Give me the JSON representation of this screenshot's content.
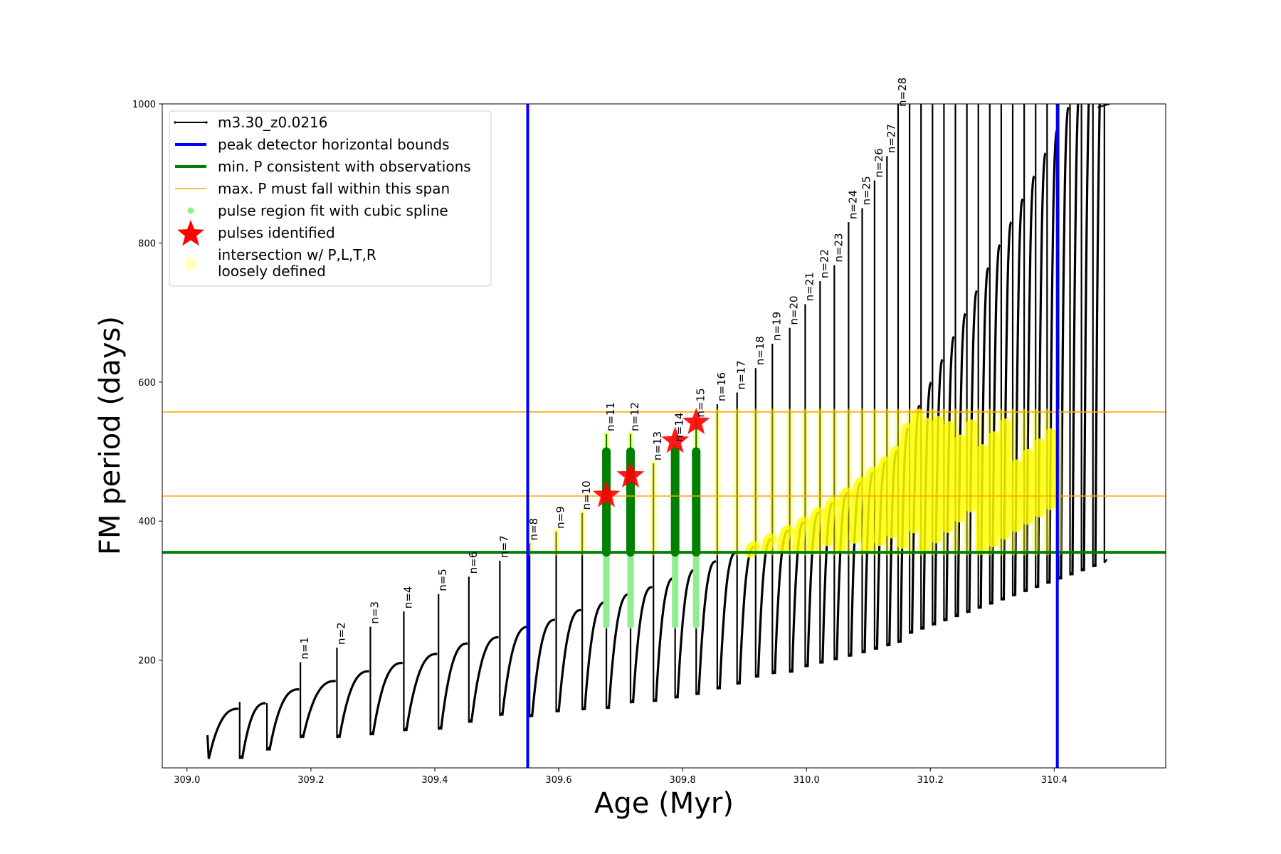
{
  "chart_data": {
    "type": "line",
    "title": "",
    "xlabel": "Age (Myr)",
    "ylabel": "FM period (days)",
    "xlim": [
      308.96,
      310.58
    ],
    "ylim": [
      45,
      1000
    ],
    "xticks": [
      "309.0",
      "309.2",
      "309.4",
      "309.6",
      "309.8",
      "310.0",
      "310.2",
      "310.4"
    ],
    "xtick_values": [
      309.0,
      309.2,
      309.4,
      309.6,
      309.8,
      310.0,
      310.2,
      310.4
    ],
    "yticks": [
      "200",
      "400",
      "600",
      "800",
      "1000"
    ],
    "ytick_values": [
      200,
      400,
      600,
      800,
      1000
    ],
    "grid": false,
    "legend_position": "top-left",
    "legend": [
      {
        "label": "m3.30_z0.0216",
        "kind": "line-marker",
        "color": "#000000"
      },
      {
        "label": "peak detector horizontal bounds",
        "kind": "line",
        "color": "#0000ff"
      },
      {
        "label": "min. P consistent with observations",
        "kind": "line",
        "color": "#008000"
      },
      {
        "label": "max. P must fall within this span",
        "kind": "thin-line",
        "color": "#ffa500"
      },
      {
        "label": "pulse region fit with cubic spline",
        "kind": "dot",
        "color": "#90ee90"
      },
      {
        "label": "pulses identified",
        "kind": "star",
        "color": "#ff0000"
      },
      {
        "label": "intersection w/ P,L,T,R",
        "label2": "loosely defined",
        "kind": "circle",
        "color": "#ffff99"
      }
    ],
    "vertical_lines": [
      {
        "x": 309.55,
        "color": "#0000ff"
      },
      {
        "x": 310.405,
        "color": "#0000ff"
      }
    ],
    "horizontal_lines": [
      {
        "y": 355,
        "color": "#008000",
        "width": "thick"
      },
      {
        "y": 436,
        "color": "#ffa500",
        "width": "thin"
      },
      {
        "y": 557,
        "color": "#ffa500",
        "width": "thin"
      }
    ],
    "pulses": [
      {
        "n": 1,
        "x": 309.183,
        "min": 88,
        "max": 197,
        "end": 158,
        "label": "n=1"
      },
      {
        "n": 2,
        "x": 309.242,
        "min": 88,
        "max": 218,
        "end": 170,
        "label": "n=2"
      },
      {
        "n": 3,
        "x": 309.296,
        "min": 92,
        "max": 248,
        "end": 184,
        "label": "n=3"
      },
      {
        "n": 4,
        "x": 309.35,
        "min": 98,
        "max": 270,
        "end": 196,
        "label": "n=4"
      },
      {
        "n": 5,
        "x": 309.406,
        "min": 100,
        "max": 295,
        "end": 209,
        "label": "n=5"
      },
      {
        "n": 6,
        "x": 309.455,
        "min": 110,
        "max": 320,
        "end": 224,
        "label": "n=6"
      },
      {
        "n": 7,
        "x": 309.505,
        "min": 120,
        "max": 343,
        "end": 233,
        "label": "n=7"
      },
      {
        "n": 8,
        "x": 309.553,
        "min": 118,
        "max": 368,
        "end": 248,
        "label": "n=8"
      },
      {
        "n": 9,
        "x": 309.596,
        "min": 125,
        "max": 385,
        "end": 258,
        "label": "n=9"
      },
      {
        "n": 10,
        "x": 309.638,
        "min": 128,
        "max": 412,
        "end": 272,
        "label": "n=10"
      },
      {
        "n": 11,
        "x": 309.677,
        "min": 130,
        "max": 525,
        "end": 283,
        "label": "n=11"
      },
      {
        "n": 12,
        "x": 309.716,
        "min": 138,
        "max": 525,
        "end": 295,
        "label": "n=12"
      },
      {
        "n": 13,
        "x": 309.753,
        "min": 140,
        "max": 483,
        "end": 305,
        "label": "n=13"
      },
      {
        "n": 14,
        "x": 309.788,
        "min": 145,
        "max": 510,
        "end": 318,
        "label": "n=14"
      },
      {
        "n": 15,
        "x": 309.822,
        "min": 150,
        "max": 545,
        "end": 330,
        "label": "n=15"
      },
      {
        "n": 16,
        "x": 309.856,
        "min": 158,
        "max": 568,
        "end": 342,
        "label": "n=16"
      },
      {
        "n": 17,
        "x": 309.888,
        "min": 165,
        "max": 585,
        "end": 354,
        "label": "n=17"
      },
      {
        "n": 18,
        "x": 309.918,
        "min": 175,
        "max": 620,
        "end": 363,
        "label": "n=18"
      },
      {
        "n": 19,
        "x": 309.945,
        "min": 180,
        "max": 655,
        "end": 374,
        "label": "n=19"
      },
      {
        "n": 20,
        "x": 309.973,
        "min": 182,
        "max": 678,
        "end": 386,
        "label": "n=20"
      },
      {
        "n": 21,
        "x": 309.998,
        "min": 190,
        "max": 712,
        "end": 398,
        "label": "n=21"
      },
      {
        "n": 22,
        "x": 310.022,
        "min": 195,
        "max": 745,
        "end": 412,
        "label": "n=22"
      },
      {
        "n": 23,
        "x": 310.045,
        "min": 200,
        "max": 768,
        "end": 426,
        "label": "n=23"
      },
      {
        "n": 24,
        "x": 310.068,
        "min": 205,
        "max": 830,
        "end": 440,
        "label": "n=24"
      },
      {
        "n": 25,
        "x": 310.09,
        "min": 210,
        "max": 850,
        "end": 455,
        "label": "n=25"
      },
      {
        "n": 26,
        "x": 310.11,
        "min": 215,
        "max": 890,
        "end": 470,
        "label": "n=26"
      },
      {
        "n": 27,
        "x": 310.13,
        "min": 220,
        "max": 925,
        "end": 485,
        "label": "n=27"
      },
      {
        "n": 28,
        "x": 310.148,
        "min": 225,
        "max": 1000,
        "end": 500,
        "label": "n=28"
      }
    ],
    "stars": [
      {
        "x": 309.677,
        "y": 437
      },
      {
        "x": 309.716,
        "y": 465
      },
      {
        "x": 309.788,
        "y": 515
      },
      {
        "x": 309.822,
        "y": 542
      }
    ]
  }
}
